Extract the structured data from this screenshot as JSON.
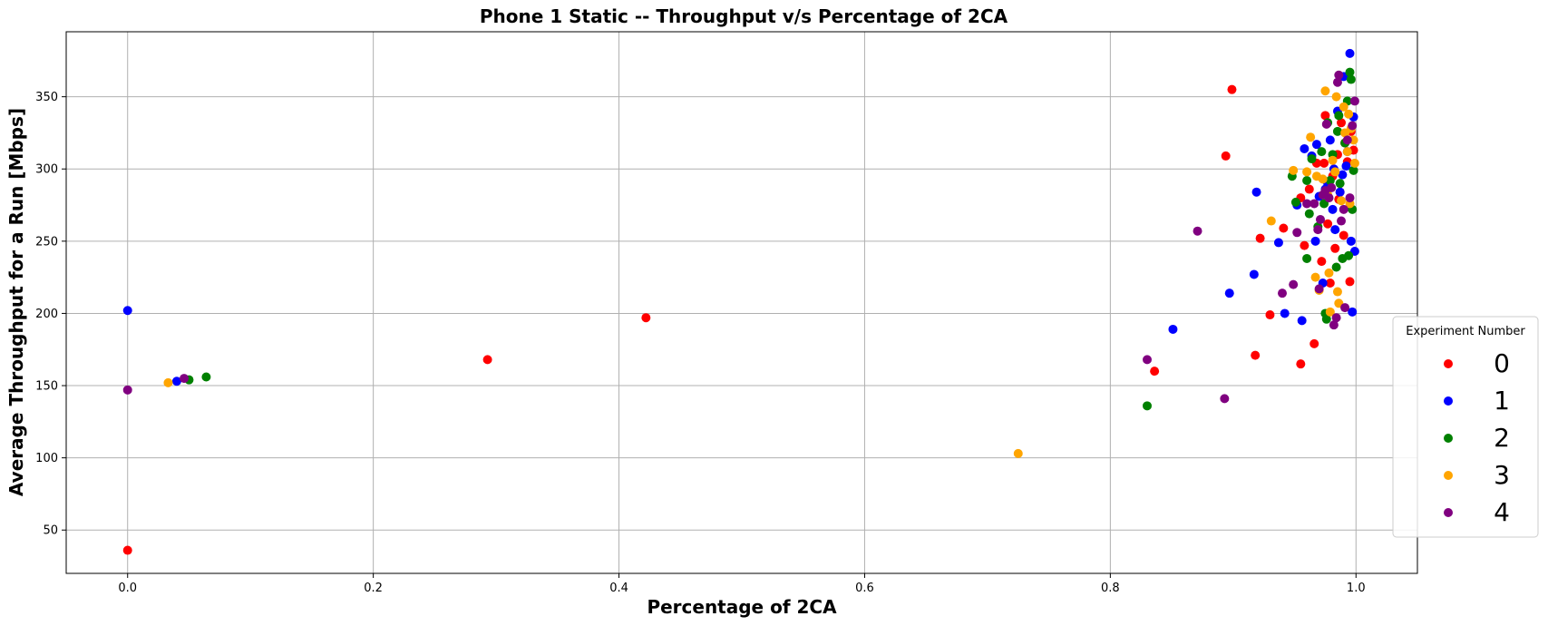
{
  "chart_data": {
    "type": "scatter",
    "title": "Phone 1 Static -- Throughput v/s Percentage of 2CA",
    "xlabel": "Percentage of 2CA",
    "ylabel": "Average Throughput for a Run [Mbps]",
    "xlim": [
      -0.05,
      1.05
    ],
    "ylim": [
      20,
      395
    ],
    "xticks": [
      0.0,
      0.2,
      0.4,
      0.6,
      0.8,
      1.0
    ],
    "xtick_labels": [
      "0.0",
      "0.2",
      "0.4",
      "0.6",
      "0.8",
      "1.0"
    ],
    "yticks": [
      50,
      100,
      150,
      200,
      250,
      300,
      350
    ],
    "ytick_labels": [
      "50",
      "100",
      "150",
      "200",
      "250",
      "300",
      "350"
    ],
    "grid": true,
    "legend": {
      "title": "Experiment Number",
      "placement": "right, outside plot"
    },
    "series": [
      {
        "name": "0",
        "color": "#ff0000",
        "points": [
          [
            0.0,
            36
          ],
          [
            0.293,
            168
          ],
          [
            0.422,
            197
          ],
          [
            0.836,
            160
          ],
          [
            0.894,
            309
          ],
          [
            0.899,
            355
          ],
          [
            0.918,
            171
          ],
          [
            0.922,
            252
          ],
          [
            0.93,
            199
          ],
          [
            0.941,
            259
          ],
          [
            0.955,
            165
          ],
          [
            0.958,
            247
          ],
          [
            0.962,
            286
          ],
          [
            0.966,
            179
          ],
          [
            0.968,
            304
          ],
          [
            0.972,
            236
          ],
          [
            0.975,
            337
          ],
          [
            0.977,
            262
          ],
          [
            0.979,
            221
          ],
          [
            0.981,
            295
          ],
          [
            0.983,
            245
          ],
          [
            0.985,
            310
          ],
          [
            0.986,
            279
          ],
          [
            0.988,
            332
          ],
          [
            0.99,
            254
          ],
          [
            0.991,
            318
          ],
          [
            0.993,
            305
          ],
          [
            0.995,
            222
          ],
          [
            0.996,
            326
          ],
          [
            0.998,
            313
          ],
          [
            0.955,
            280
          ],
          [
            0.974,
            304
          ],
          [
            0.987,
            284
          ]
        ]
      },
      {
        "name": "1",
        "color": "#0000ff",
        "points": [
          [
            0.0,
            202
          ],
          [
            0.04,
            153
          ],
          [
            0.851,
            189
          ],
          [
            0.897,
            214
          ],
          [
            0.917,
            227
          ],
          [
            0.919,
            284
          ],
          [
            0.937,
            249
          ],
          [
            0.942,
            200
          ],
          [
            0.952,
            275
          ],
          [
            0.956,
            195
          ],
          [
            0.958,
            314
          ],
          [
            0.964,
            309
          ],
          [
            0.967,
            250
          ],
          [
            0.968,
            317
          ],
          [
            0.973,
            221
          ],
          [
            0.975,
            286
          ],
          [
            0.977,
            290
          ],
          [
            0.979,
            320
          ],
          [
            0.981,
            272
          ],
          [
            0.983,
            258
          ],
          [
            0.985,
            340
          ],
          [
            0.987,
            284
          ],
          [
            0.989,
            296
          ],
          [
            0.99,
            364
          ],
          [
            0.992,
            302
          ],
          [
            0.993,
            312
          ],
          [
            0.995,
            380
          ],
          [
            0.996,
            250
          ],
          [
            0.997,
            201
          ],
          [
            0.998,
            336
          ],
          [
            0.999,
            243
          ],
          [
            0.97,
            281
          ],
          [
            0.982,
            300
          ]
        ]
      },
      {
        "name": "2",
        "color": "#008000",
        "points": [
          [
            0.05,
            154
          ],
          [
            0.064,
            156
          ],
          [
            0.83,
            136
          ],
          [
            0.948,
            295
          ],
          [
            0.951,
            277
          ],
          [
            0.96,
            238
          ],
          [
            0.962,
            269
          ],
          [
            0.964,
            307
          ],
          [
            0.969,
            260
          ],
          [
            0.972,
            312
          ],
          [
            0.974,
            276
          ],
          [
            0.975,
            200
          ],
          [
            0.977,
            332
          ],
          [
            0.979,
            292
          ],
          [
            0.981,
            310
          ],
          [
            0.984,
            232
          ],
          [
            0.985,
            326
          ],
          [
            0.987,
            290
          ],
          [
            0.989,
            238
          ],
          [
            0.991,
            318
          ],
          [
            0.993,
            347
          ],
          [
            0.994,
            240
          ],
          [
            0.995,
            367
          ],
          [
            0.996,
            362
          ],
          [
            0.997,
            272
          ],
          [
            0.998,
            299
          ],
          [
            0.976,
            196
          ],
          [
            0.986,
            337
          ],
          [
            0.96,
            292
          ]
        ]
      },
      {
        "name": "3",
        "color": "#ffa500",
        "points": [
          [
            0.033,
            152
          ],
          [
            0.725,
            103
          ],
          [
            0.931,
            264
          ],
          [
            0.949,
            299
          ],
          [
            0.96,
            298
          ],
          [
            0.963,
            322
          ],
          [
            0.967,
            225
          ],
          [
            0.97,
            216
          ],
          [
            0.973,
            293
          ],
          [
            0.975,
            354
          ],
          [
            0.977,
            282
          ],
          [
            0.979,
            201
          ],
          [
            0.981,
            306
          ],
          [
            0.983,
            298
          ],
          [
            0.984,
            350
          ],
          [
            0.985,
            215
          ],
          [
            0.986,
            207
          ],
          [
            0.988,
            278
          ],
          [
            0.99,
            343
          ],
          [
            0.991,
            325
          ],
          [
            0.993,
            312
          ],
          [
            0.994,
            338
          ],
          [
            0.995,
            276
          ],
          [
            0.996,
            328
          ],
          [
            0.998,
            320
          ],
          [
            0.999,
            304
          ],
          [
            0.978,
            228
          ],
          [
            0.968,
            295
          ]
        ]
      },
      {
        "name": "4",
        "color": "#800080",
        "points": [
          [
            0.0,
            147
          ],
          [
            0.046,
            155
          ],
          [
            0.83,
            168
          ],
          [
            0.871,
            257
          ],
          [
            0.893,
            141
          ],
          [
            0.94,
            214
          ],
          [
            0.949,
            220
          ],
          [
            0.952,
            256
          ],
          [
            0.96,
            276
          ],
          [
            0.966,
            276
          ],
          [
            0.969,
            258
          ],
          [
            0.97,
            217
          ],
          [
            0.971,
            265
          ],
          [
            0.973,
            282
          ],
          [
            0.976,
            331
          ],
          [
            0.978,
            280
          ],
          [
            0.98,
            287
          ],
          [
            0.982,
            192
          ],
          [
            0.984,
            197
          ],
          [
            0.985,
            360
          ],
          [
            0.986,
            365
          ],
          [
            0.988,
            264
          ],
          [
            0.99,
            272
          ],
          [
            0.991,
            204
          ],
          [
            0.993,
            320
          ],
          [
            0.995,
            280
          ],
          [
            0.997,
            330
          ],
          [
            0.999,
            347
          ],
          [
            0.975,
            285
          ]
        ]
      }
    ]
  }
}
